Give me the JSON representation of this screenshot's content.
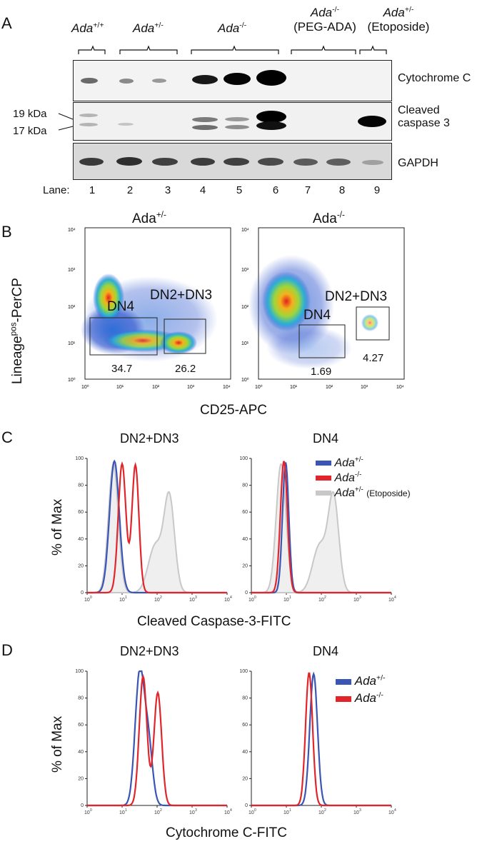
{
  "panels": {
    "a": "A",
    "b": "B",
    "c": "C",
    "d": "D"
  },
  "panelA": {
    "groups": [
      {
        "name": "Ada",
        "sup": "+/+",
        "extra": ""
      },
      {
        "name": "Ada",
        "sup": "+/-",
        "extra": ""
      },
      {
        "name": "Ada",
        "sup": "-/-",
        "extra": ""
      },
      {
        "name": "Ada",
        "sup": "-/-",
        "extra": "(PEG-ADA)"
      },
      {
        "name": "Ada",
        "sup": "+/-",
        "extra": "(Etoposide)"
      }
    ],
    "markers": {
      "top": "19 kDa",
      "bottom": "17 kDa"
    },
    "blots": [
      "Cytochrome C",
      "Cleaved",
      "caspase 3",
      "GAPDH"
    ],
    "lane_label": "Lane:",
    "lanes": [
      "1",
      "2",
      "3",
      "4",
      "5",
      "6",
      "7",
      "8",
      "9"
    ]
  },
  "panelB": {
    "left": {
      "title": "Ada",
      "sup": "+/-",
      "dn4": "DN4",
      "dn23": "DN2+DN3",
      "v_dn4": "34.7",
      "v_dn23": "26.2"
    },
    "right": {
      "title": "Ada",
      "sup": "-/-",
      "dn4": "DN4",
      "dn23": "DN2+DN3",
      "v_dn4": "1.69",
      "v_dn23": "4.27"
    },
    "ylabel_main": "Lineage",
    "ylabel_sup": "pos",
    "ylabel_end": "-PerCP",
    "xlabel": "CD25-APC"
  },
  "panelC": {
    "left_title": "DN2+DN3",
    "right_title": "DN4",
    "ylabel": "% of Max",
    "xlabel": "Cleaved Caspase-3-FITC",
    "legend": [
      {
        "name": "Ada",
        "sup": "+/-",
        "extra": "",
        "color": "#3a55b4"
      },
      {
        "name": "Ada",
        "sup": "-/-",
        "extra": "",
        "color": "#e0262b"
      },
      {
        "name": "Ada",
        "sup": "+/-",
        "extra": "(Etoposide)",
        "color": "#c8c8c8"
      }
    ]
  },
  "panelD": {
    "left_title": "DN2+DN3",
    "right_title": "DN4",
    "ylabel": "% of Max",
    "xlabel": "Cytochrome C-FITC",
    "legend": [
      {
        "name": "Ada",
        "sup": "+/-",
        "color": "#3a55b4"
      },
      {
        "name": "Ada",
        "sup": "-/-",
        "color": "#e0262b"
      }
    ]
  },
  "axis": {
    "y_ticks": [
      "0",
      "20",
      "40",
      "60",
      "80",
      "100"
    ],
    "x_exp": [
      "0",
      "1",
      "2",
      "3",
      "4"
    ],
    "base": "10"
  },
  "colors": {
    "blue": "#3a55b4",
    "red": "#e0262b",
    "grey": "#c8c8c8"
  }
}
